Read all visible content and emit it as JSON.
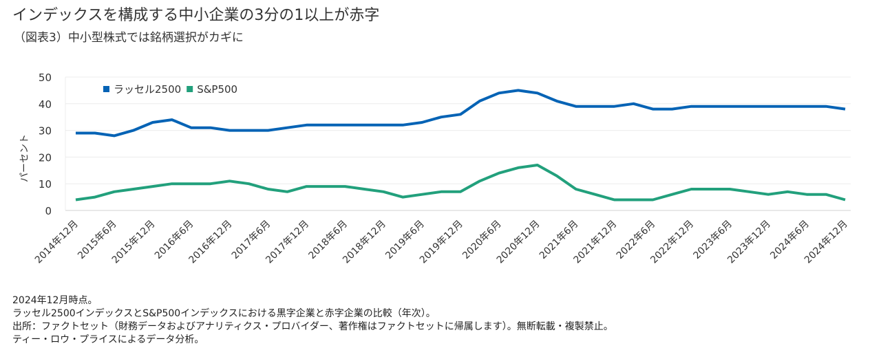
{
  "title": "インデックスを構成する中小企業の3分の1以上が赤字",
  "subtitle": "（図表3）中小型株式では銘柄選択がカギに",
  "chart_data": {
    "type": "line",
    "ylabel": "パーセント",
    "xlabel": "",
    "ylim": [
      0,
      50
    ],
    "yticks": [
      0,
      10,
      20,
      30,
      40,
      50
    ],
    "grid": "horizontal",
    "legend_placement": "top-left",
    "x_tick_labels": [
      "2014年12月",
      "2015年6月",
      "2015年12月",
      "2016年6月",
      "2016年12月",
      "2017年6月",
      "2017年12月",
      "2018年6月",
      "2018年12月",
      "2019年6月",
      "2019年12月",
      "2020年6月",
      "2020年12月",
      "2021年6月",
      "2021年12月",
      "2022年6月",
      "2022年12月",
      "2023年6月",
      "2023年12月",
      "2024年6月",
      "2024年12月"
    ],
    "series": [
      {
        "name": "ラッセル2500",
        "color": "#0563b5",
        "values": [
          29,
          29,
          28,
          30,
          33,
          34,
          31,
          31,
          30,
          30,
          30,
          31,
          32,
          32,
          32,
          32,
          32,
          32,
          33,
          35,
          36,
          41,
          44,
          45,
          44,
          41,
          39,
          39,
          39,
          40,
          38,
          38,
          39,
          39,
          39,
          39,
          39,
          39,
          39,
          39,
          38
        ]
      },
      {
        "name": "S&P500",
        "color": "#22a07c",
        "values": [
          4,
          5,
          7,
          8,
          9,
          10,
          10,
          10,
          11,
          10,
          8,
          7,
          9,
          9,
          9,
          8,
          7,
          5,
          6,
          7,
          7,
          11,
          14,
          16,
          17,
          13,
          8,
          6,
          4,
          4,
          4,
          6,
          8,
          8,
          8,
          7,
          6,
          7,
          6,
          6,
          4
        ]
      }
    ]
  },
  "notes": [
    "2024年12月時点。",
    "ラッセル2500インデックスとS&P500インデックスにおける黒字企業と赤字企業の比較（年次）。",
    "出所：ファクトセット（財務データおよびアナリティクス・プロバイダー、著作権はファクトセットに帰属します）。無断転載・複製禁止。",
    "ティー・ロウ・プライスによるデータ分析。"
  ]
}
